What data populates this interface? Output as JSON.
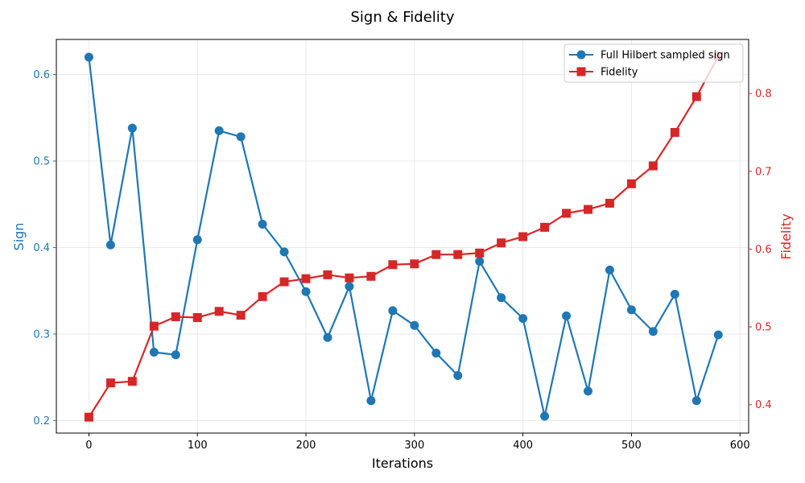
{
  "chart_data": {
    "type": "line",
    "title": "Sign & Fidelity",
    "xlabel": "Iterations",
    "ylabel_left": "Sign",
    "ylabel_right": "Fidelity",
    "xlim": [
      -30,
      608
    ],
    "ylim_left": [
      0.1855,
      0.6405
    ],
    "ylim_right": [
      0.3635,
      0.8695
    ],
    "x_ticks": [
      0,
      100,
      200,
      300,
      400,
      500,
      600
    ],
    "y_ticks_left": [
      0.2,
      0.3,
      0.4,
      0.5,
      0.6
    ],
    "y_ticks_right": [
      0.4,
      0.5,
      0.6,
      0.7,
      0.8
    ],
    "grid": true,
    "legend_position": "top-right",
    "x": [
      0,
      20,
      40,
      60,
      80,
      100,
      120,
      140,
      160,
      180,
      200,
      220,
      240,
      260,
      280,
      300,
      320,
      340,
      360,
      380,
      400,
      420,
      440,
      460,
      480,
      500,
      520,
      540,
      560,
      580
    ],
    "series": [
      {
        "name": "Full Hilbert sampled sign",
        "axis": "left",
        "color": "#1f77b4",
        "marker": "circle",
        "values": [
          0.62,
          0.403,
          0.538,
          0.279,
          0.276,
          0.409,
          0.535,
          0.528,
          0.427,
          0.395,
          0.349,
          0.296,
          0.355,
          0.223,
          0.327,
          0.31,
          0.278,
          0.252,
          0.384,
          0.342,
          0.318,
          0.205,
          0.321,
          0.234,
          0.374,
          0.328,
          0.303,
          0.346,
          0.223,
          0.299
        ]
      },
      {
        "name": "Fidelity",
        "axis": "right",
        "color": "#d62728",
        "marker": "square",
        "values": [
          0.384,
          0.428,
          0.43,
          0.501,
          0.513,
          0.512,
          0.52,
          0.515,
          0.539,
          0.558,
          0.562,
          0.567,
          0.563,
          0.565,
          0.58,
          0.581,
          0.593,
          0.593,
          0.595,
          0.608,
          0.616,
          0.628,
          0.646,
          0.651,
          0.659,
          0.684,
          0.707,
          0.75,
          0.796,
          0.848
        ]
      }
    ]
  }
}
